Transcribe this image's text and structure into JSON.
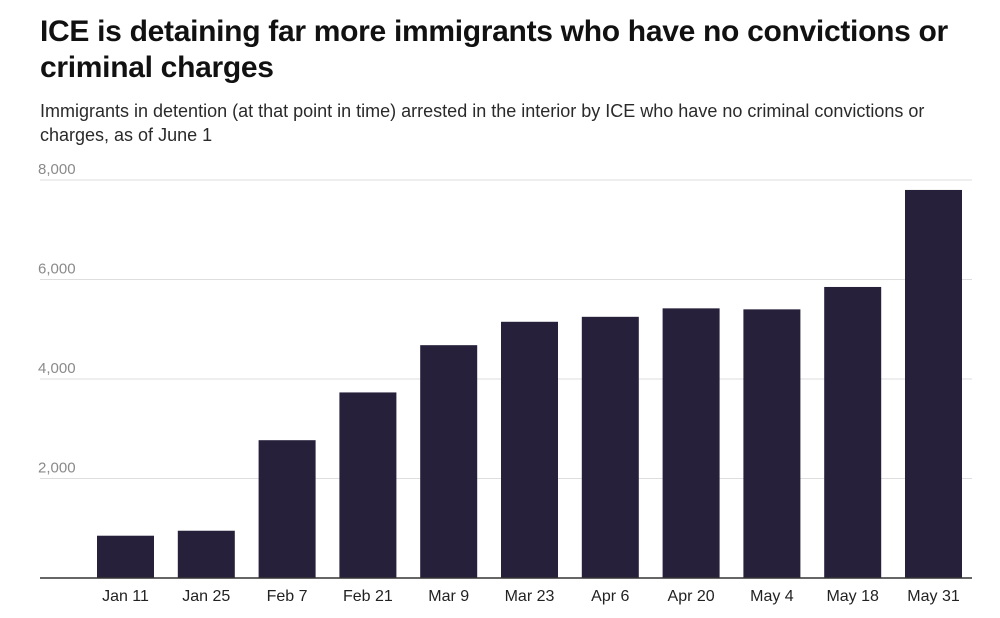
{
  "chart_data": {
    "type": "bar",
    "title": "ICE is detaining far more immigrants who have no convictions or criminal charges",
    "subtitle": "Immigrants in detention (at that point in time) arrested in the interior by ICE who have no criminal convictions or charges, as of June 1",
    "xlabel": "",
    "ylabel": "",
    "categories": [
      "Jan 11",
      "Jan 25",
      "Feb 7",
      "Feb 21",
      "Mar 9",
      "Mar 23",
      "Apr 6",
      "Apr 20",
      "May 4",
      "May 18",
      "May 31"
    ],
    "values": [
      850,
      950,
      2770,
      3730,
      4680,
      5150,
      5250,
      5420,
      5400,
      5850,
      7800
    ],
    "ylim": [
      0,
      8000
    ],
    "yticks": [
      2000,
      4000,
      6000,
      8000
    ],
    "ytick_labels": [
      "2,000",
      "4,000",
      "6,000",
      "8,000"
    ],
    "grid": true,
    "bar_color": "#26203a"
  }
}
